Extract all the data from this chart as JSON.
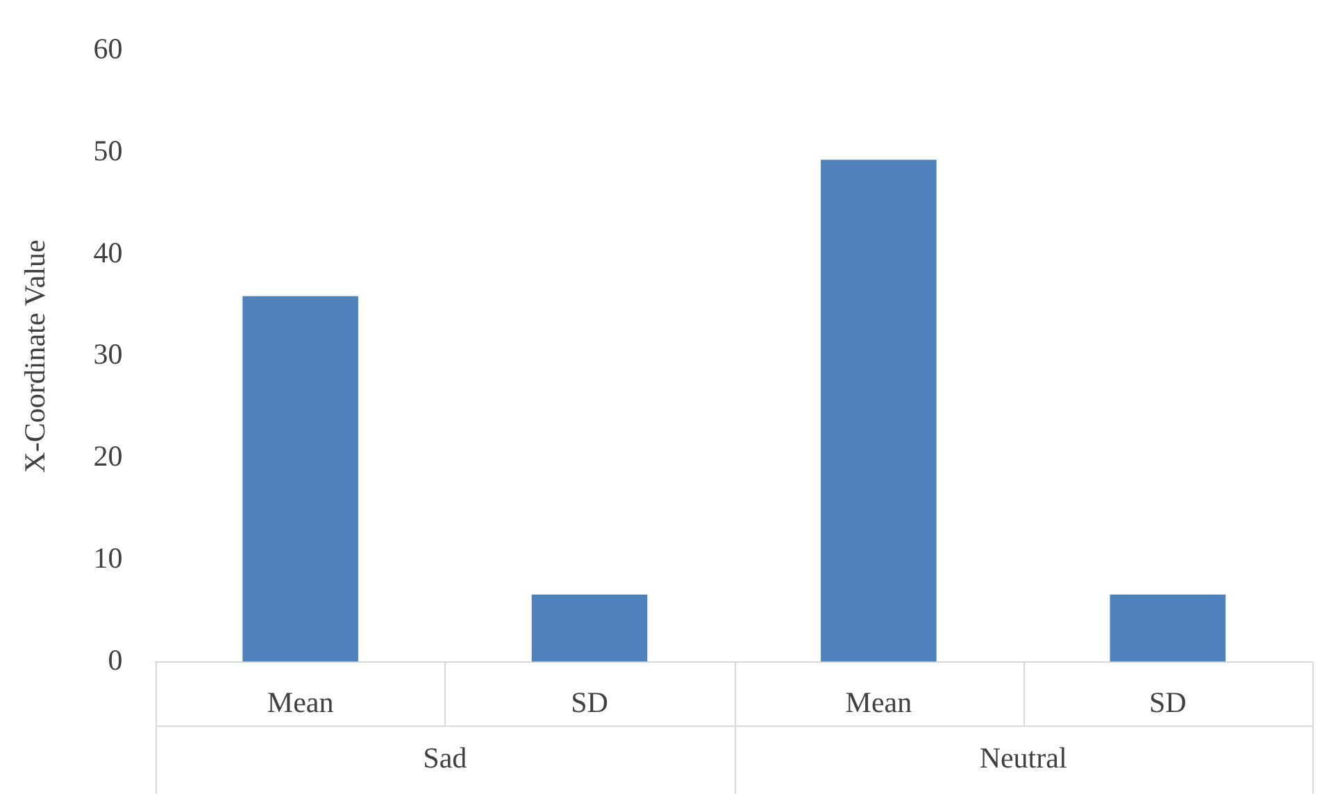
{
  "chart_data": {
    "type": "bar",
    "ylabel": "X-Coordinate Value",
    "categories": [
      "Mean",
      "SD",
      "Mean",
      "SD"
    ],
    "values": [
      35.9,
      6.6,
      49.3,
      6.6
    ],
    "color": "#4f81bd",
    "ylim": [
      0,
      60
    ],
    "yticks": [
      0,
      10,
      20,
      30,
      40,
      50,
      60
    ],
    "grid": false,
    "legend": false,
    "annotations": [
      "Sad",
      "Neutral"
    ]
  }
}
